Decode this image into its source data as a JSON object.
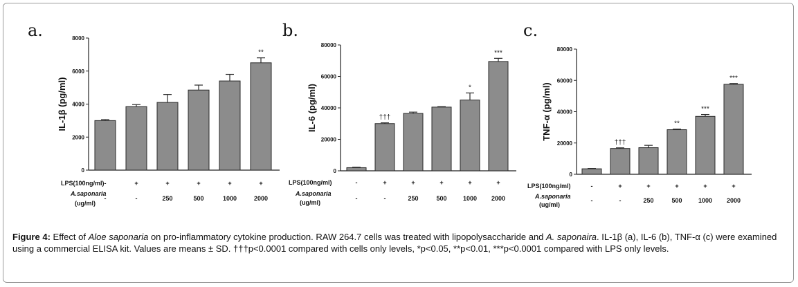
{
  "chart_data": [
    {
      "type": "bar",
      "panel": "a.",
      "ylabel": "IL-1β (pg/ml)",
      "ylim": [
        0,
        8000
      ],
      "yticks": [
        "0",
        "2000",
        "4000",
        "6000",
        "8000"
      ],
      "values": [
        3000,
        3850,
        4100,
        4850,
        5400,
        6500
      ],
      "errors": [
        60,
        120,
        480,
        300,
        400,
        300
      ],
      "significance": [
        "",
        "",
        "",
        "",
        "",
        "**"
      ]
    },
    {
      "type": "bar",
      "panel": "b.",
      "ylabel": "IL-6 (pg/ml)",
      "ylim": [
        0,
        80000
      ],
      "yticks": [
        "0",
        "20000",
        "40000",
        "60000",
        "80000"
      ],
      "values": [
        2000,
        30000,
        36500,
        40500,
        45000,
        69500
      ],
      "errors": [
        300,
        500,
        800,
        300,
        4500,
        2000
      ],
      "significance": [
        "",
        "†††",
        "",
        "",
        "*",
        "***"
      ]
    },
    {
      "type": "bar",
      "panel": "c.",
      "ylabel": "TNF-α (pg/ml)",
      "ylim": [
        0,
        80000
      ],
      "yticks": [
        "0",
        "20000",
        "40000",
        "60000",
        "80000"
      ],
      "values": [
        3500,
        16500,
        17000,
        28500,
        37000,
        57500
      ],
      "errors": [
        200,
        400,
        1500,
        400,
        1200,
        500
      ],
      "significance": [
        "",
        "†††",
        "",
        "**",
        "***",
        "***"
      ]
    }
  ],
  "conditions": {
    "lps_label": "LPS(100ng/ml)",
    "aloe_label_1": "A.saponaria",
    "aloe_label_2": "(ug/ml)",
    "lps": [
      "-",
      "+",
      "+",
      "+",
      "+",
      "+"
    ],
    "aloe": [
      "-",
      "-",
      "250",
      "500",
      "1000",
      "2000"
    ]
  },
  "caption": {
    "fig_label": "Figure 4:",
    "t1": " Effect of ",
    "it1": "Aloe saponaria",
    "t2": " on pro-inflammatory cytokine production. RAW 264.7 cells was treated with lipopolysaccharide and ",
    "it2": "A. saponaira",
    "t3": ". IL-1β (a), IL-6 (b), TNF-α (c) were examined using a commercial ELISA kit. Values are means ± SD. †††p<0.0001 compared with cells only levels, *p<0.05, **p<0.01, ***p<0.0001 compared with LPS only levels."
  },
  "colors": {
    "bar": "#8c8c8c",
    "bar_edge": "#2a2a2a",
    "axis": "#222222"
  }
}
